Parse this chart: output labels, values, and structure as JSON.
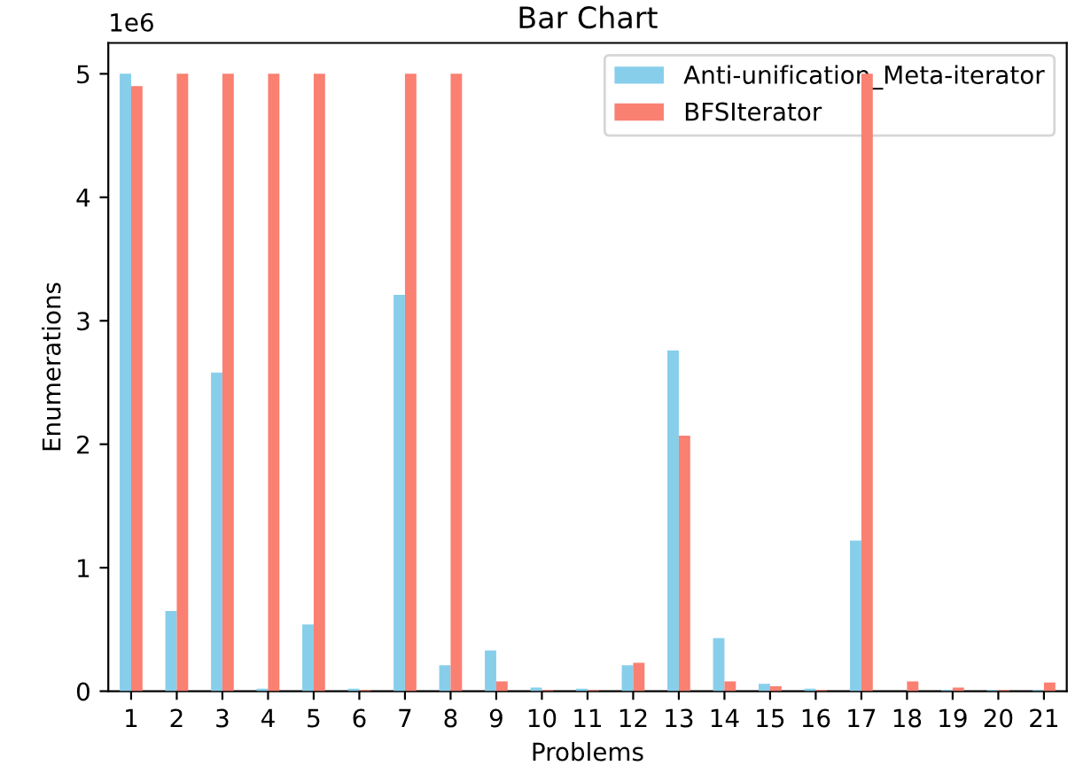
{
  "chart_data": {
    "type": "bar",
    "title": "Bar Chart",
    "xlabel": "Problems",
    "ylabel": "Enumerations",
    "categories": [
      "1",
      "2",
      "3",
      "4",
      "5",
      "6",
      "7",
      "8",
      "9",
      "10",
      "11",
      "12",
      "13",
      "14",
      "15",
      "16",
      "17",
      "18",
      "19",
      "20",
      "21"
    ],
    "series": [
      {
        "name": "Anti-unification_Meta-iterator",
        "color": "#87ceeb",
        "values": [
          5.0,
          0.65,
          2.58,
          0.02,
          0.54,
          0.02,
          3.21,
          0.21,
          0.33,
          0.03,
          0.02,
          0.21,
          2.76,
          0.43,
          0.06,
          0.02,
          1.22,
          0,
          0.01,
          0.01,
          0.01
        ]
      },
      {
        "name": "BFSIterator",
        "color": "#fa8072",
        "values": [
          4.9,
          5.0,
          5.0,
          5.0,
          5.0,
          0.01,
          5.0,
          5.0,
          0.08,
          0.01,
          0.01,
          0.23,
          2.07,
          0.08,
          0.04,
          0.01,
          5.0,
          0.08,
          0.03,
          0.01,
          0.07
        ]
      }
    ],
    "ylim": [
      0,
      5.25
    ],
    "yticks": [
      0,
      1,
      2,
      3,
      4,
      5
    ],
    "annotations": [
      "1e6"
    ],
    "legend": "top right",
    "grid": false
  }
}
